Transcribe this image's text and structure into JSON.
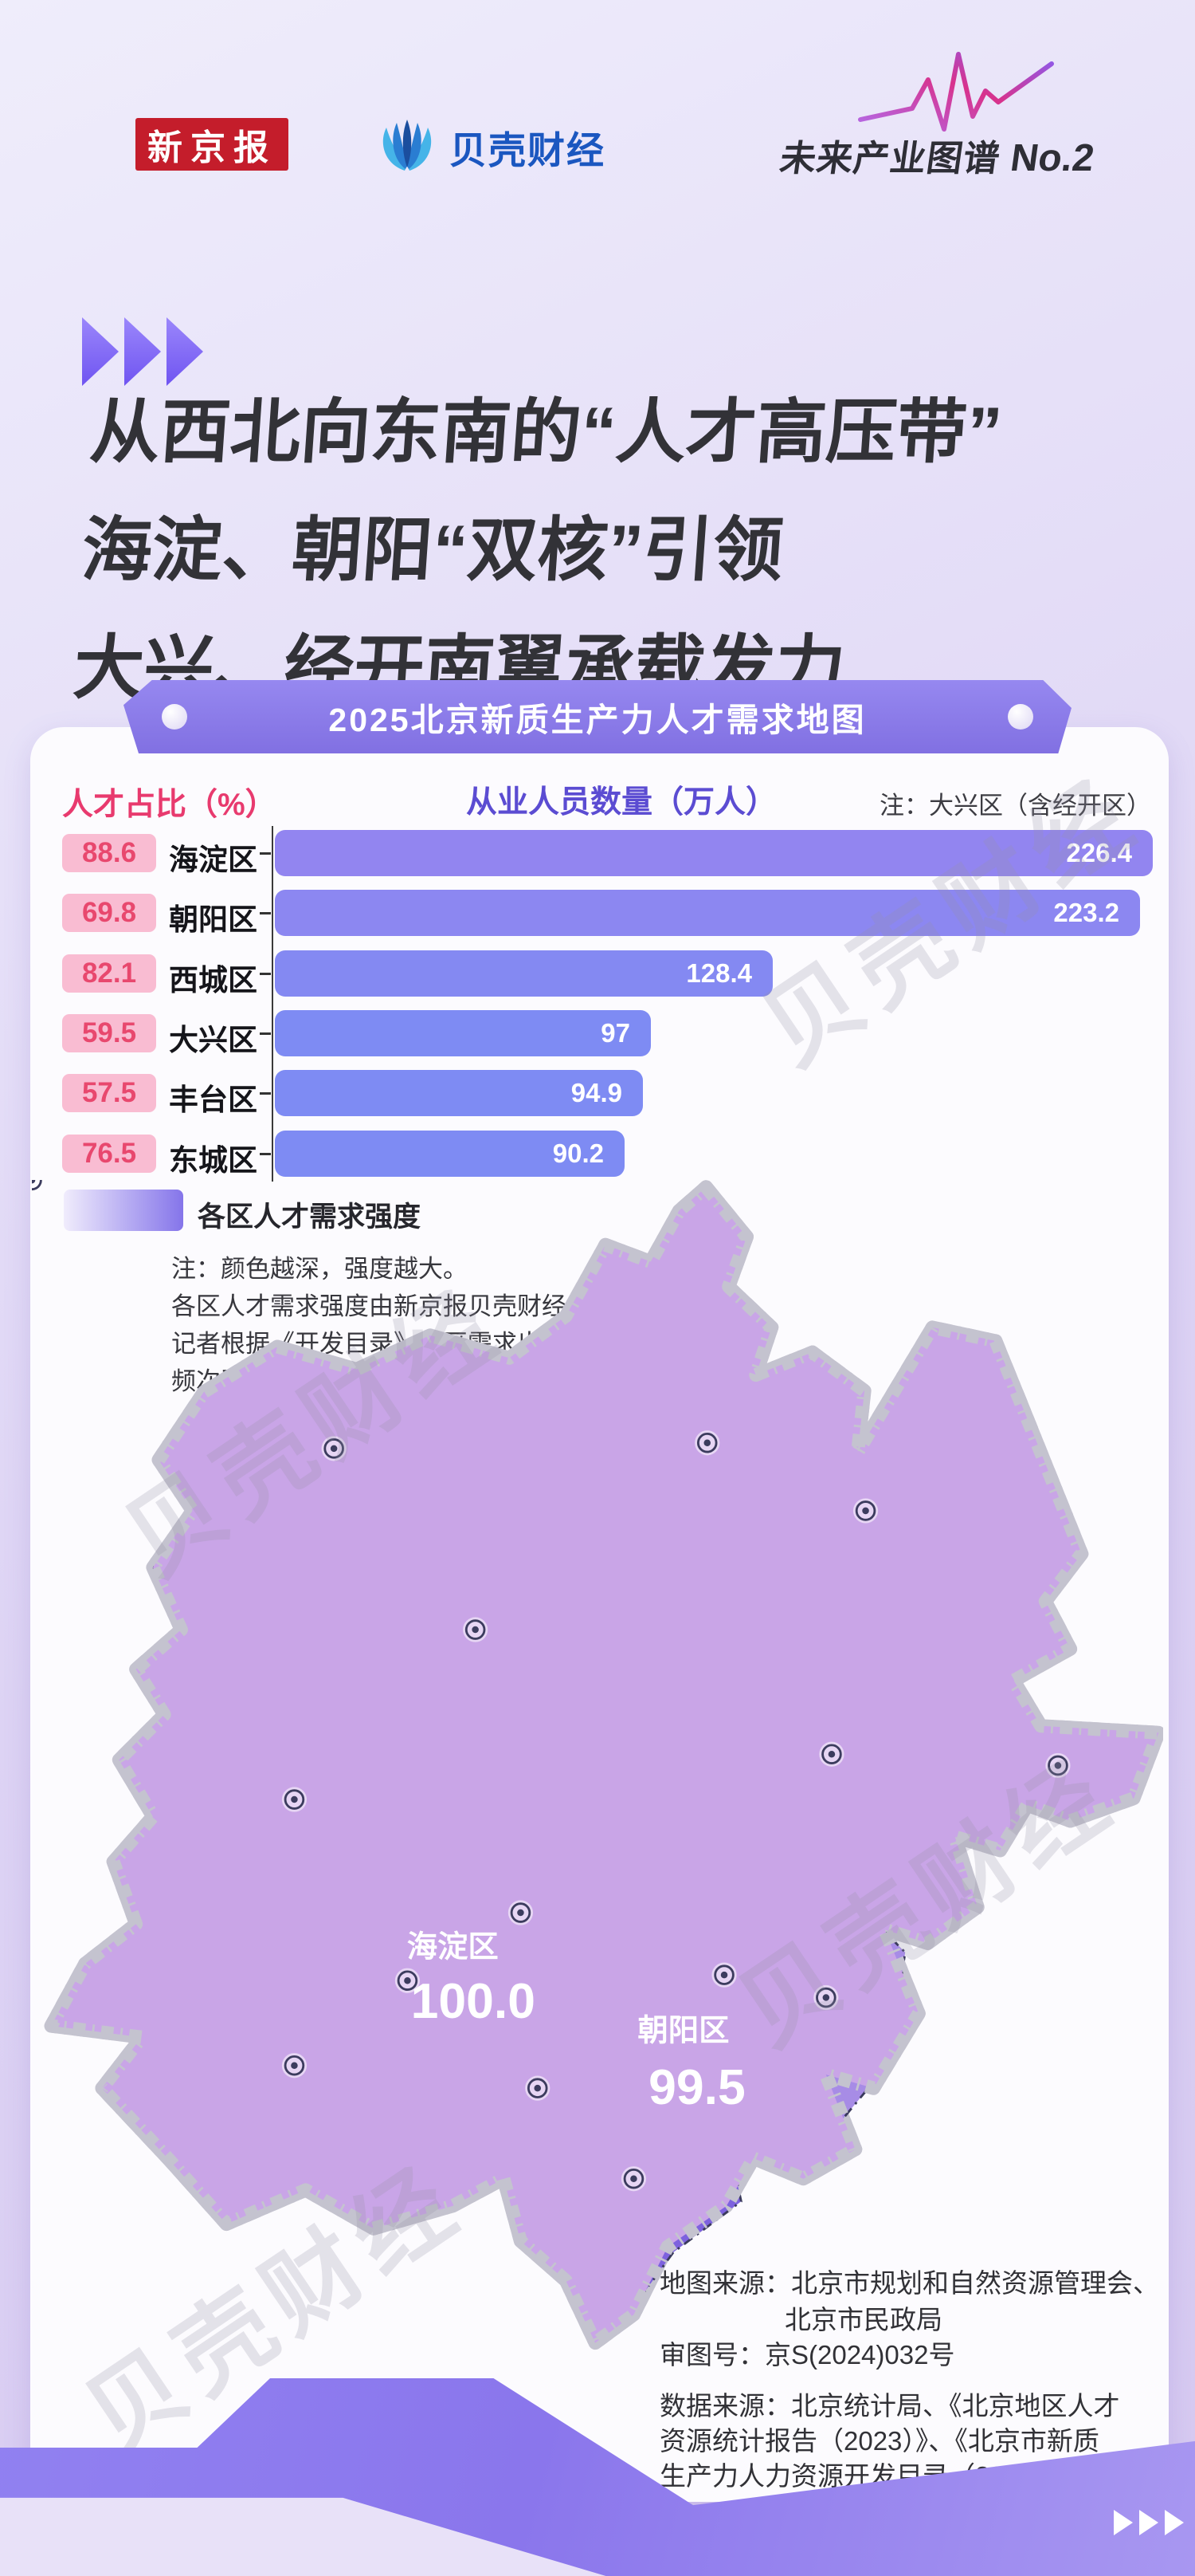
{
  "header": {
    "newspaper_logo": "新京报",
    "finance_logo": "贝壳财经",
    "series_title": "未来产业图谱",
    "series_no": "No.2"
  },
  "title": {
    "lines": [
      "从西北向东南的“人才高压带”",
      "海淀、朝阳“双核”引领",
      "大兴、经开南翼承载发力"
    ]
  },
  "banner": {
    "text": "2025北京新质生产力人才需求地图"
  },
  "chart": {
    "left_header": "人才占比（%）",
    "bar_header": "从业人员数量（万人）",
    "note": "注：大兴区（含经开区）",
    "max_value": 226.4,
    "rows": [
      {
        "percent": "88.6",
        "district": "海淀区",
        "value": "226.4",
        "bar_color": "#9285f0"
      },
      {
        "percent": "69.8",
        "district": "朝阳区",
        "value": "223.2",
        "bar_color": "#8c87f1"
      },
      {
        "percent": "82.1",
        "district": "西城区",
        "value": "128.4",
        "bar_color": "#8489f2"
      },
      {
        "percent": "59.5",
        "district": "大兴区",
        "value": "97",
        "bar_color": "#7e8bf3"
      },
      {
        "percent": "57.5",
        "district": "丰台区",
        "value": "94.9",
        "bar_color": "#7e8bf3"
      },
      {
        "percent": "76.5",
        "district": "东城区",
        "value": "90.2",
        "bar_color": "#7e8bf3"
      }
    ]
  },
  "legend": {
    "label": "各区人才需求强度",
    "gradient_from": "#f0ecfc",
    "gradient_to": "#8575ea"
  },
  "map_note": {
    "lines": [
      "注：颜色越深，强度越大。",
      "各区人才需求强度由新京报贝壳财经",
      "记者根据《开发目录》各区需求出现",
      "频次及人力资源开发评级计算得出。"
    ]
  },
  "map": {
    "labels": [
      {
        "district": "海淀区",
        "value": "100.0"
      },
      {
        "district": "朝阳区",
        "value": "99.5"
      }
    ]
  },
  "sources": {
    "map_source_line1": "地图来源：北京市规划和自然资源管理会、",
    "map_source_line2": "北京市民政局",
    "approval_no": "审图号：京S(2024)032号",
    "data_source_lines": [
      "数据来源：北京统计局、《北京地区人才",
      "资源统计报告（2023）》、《北京市新质",
      "生产力人力资源开发目录（2025年版）》"
    ]
  },
  "watermark": {
    "text": "贝壳财经"
  },
  "colors": {
    "page_bg_top": "#efedfb",
    "page_bg_bottom": "#d6c9f1",
    "card_bg": "#fcfbfe",
    "accent_purple": "#8374ea",
    "pink": "#e8486e",
    "pink_badge_bg": "#f9bcd2",
    "bar_header_purple": "#5b4cd2",
    "title_color": "#323237",
    "map_dark": "#5e54e6",
    "map_daxing": "#7d62de",
    "map_light": "#c9a5e7",
    "logo_red": "#c41d2b",
    "logo_blue": "#1b57c0"
  },
  "chart_data": [
    {
      "type": "bar",
      "orientation": "horizontal",
      "title": "从业人员数量（万人）",
      "categories": [
        "海淀区",
        "朝阳区",
        "西城区",
        "大兴区",
        "丰台区",
        "东城区"
      ],
      "values": [
        226.4,
        223.2,
        128.4,
        97,
        94.9,
        90.2
      ],
      "secondary_series": {
        "name": "人才占比（%）",
        "values": [
          88.6,
          69.8,
          82.1,
          59.5,
          57.5,
          76.5
        ]
      },
      "xlim": [
        0,
        226.4
      ],
      "note": "注：大兴区（含经开区）",
      "legend_position": "top"
    },
    {
      "type": "heatmap",
      "subtype": "choropleth-map",
      "title": "各区人才需求强度",
      "note": "颜色越深，强度越大",
      "labeled_values": [
        {
          "district": "海淀区",
          "value": 100.0
        },
        {
          "district": "朝阳区",
          "value": 99.5
        }
      ]
    }
  ]
}
